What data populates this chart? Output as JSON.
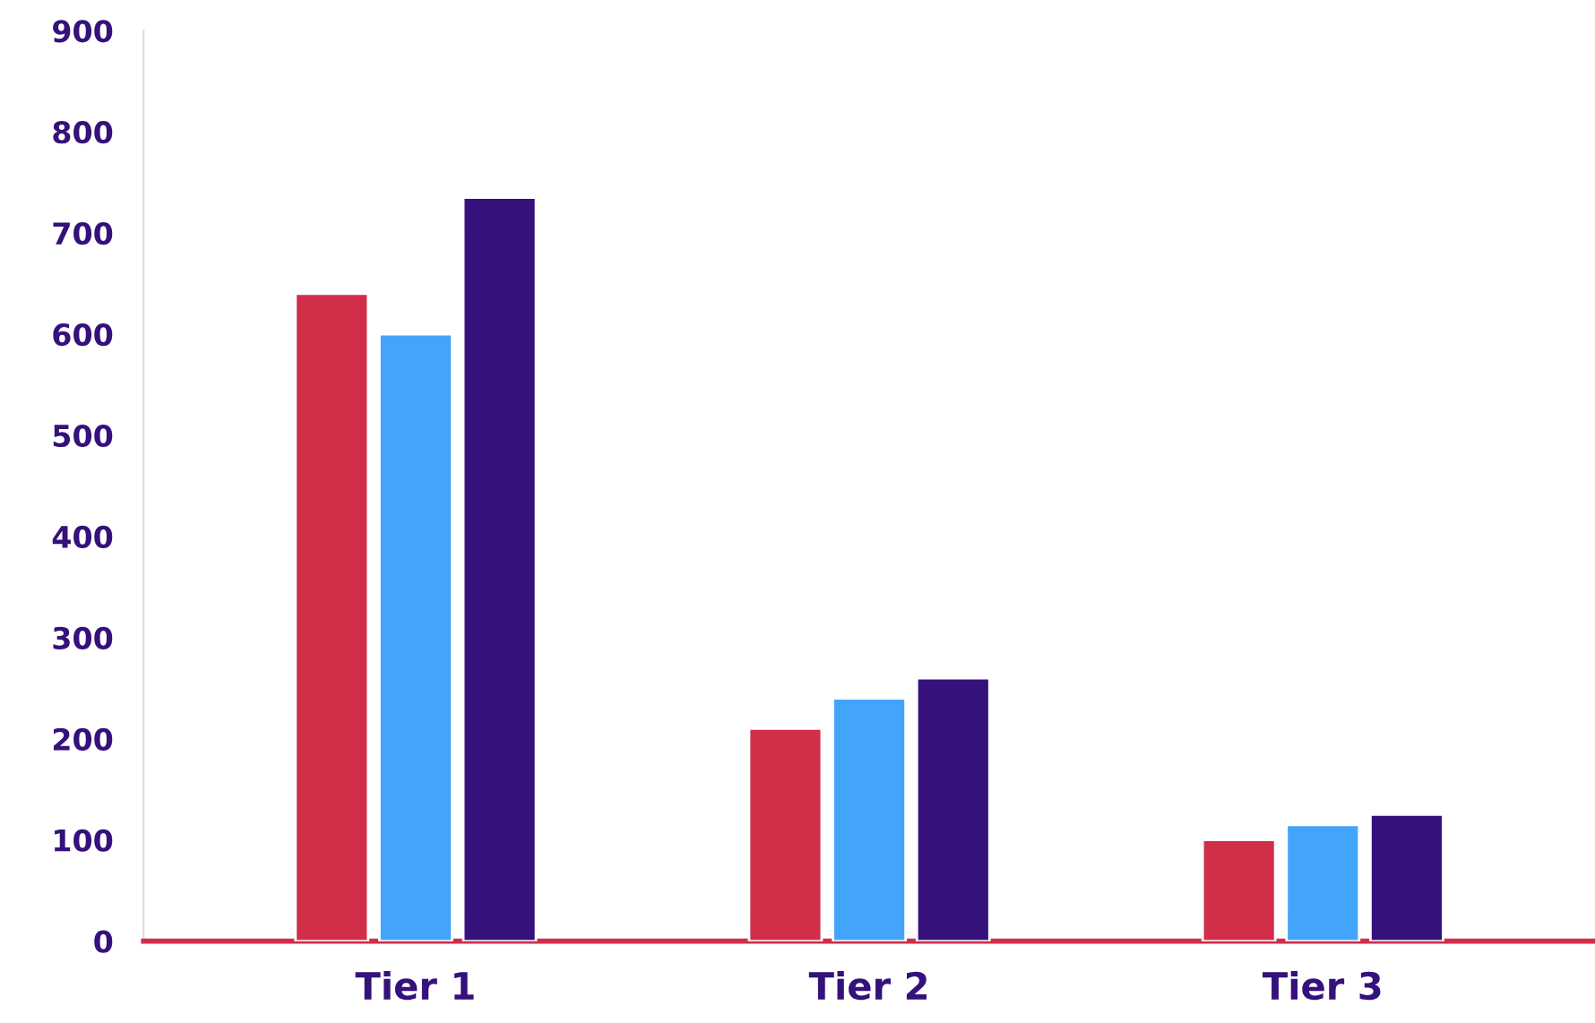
{
  "chart_data": {
    "type": "bar",
    "categories": [
      "Tier 1",
      "Tier 2",
      "Tier 3"
    ],
    "series": [
      {
        "color": "#d12e4a",
        "values": [
          640,
          210,
          100
        ]
      },
      {
        "color": "#42a5fb",
        "values": [
          600,
          240,
          115
        ]
      },
      {
        "color": "#35117c",
        "values": [
          735,
          260,
          125
        ]
      }
    ],
    "ylim": [
      0,
      900
    ],
    "yticks": [
      0,
      100,
      200,
      300,
      400,
      500,
      600,
      700,
      800,
      900
    ],
    "grid": false
  }
}
